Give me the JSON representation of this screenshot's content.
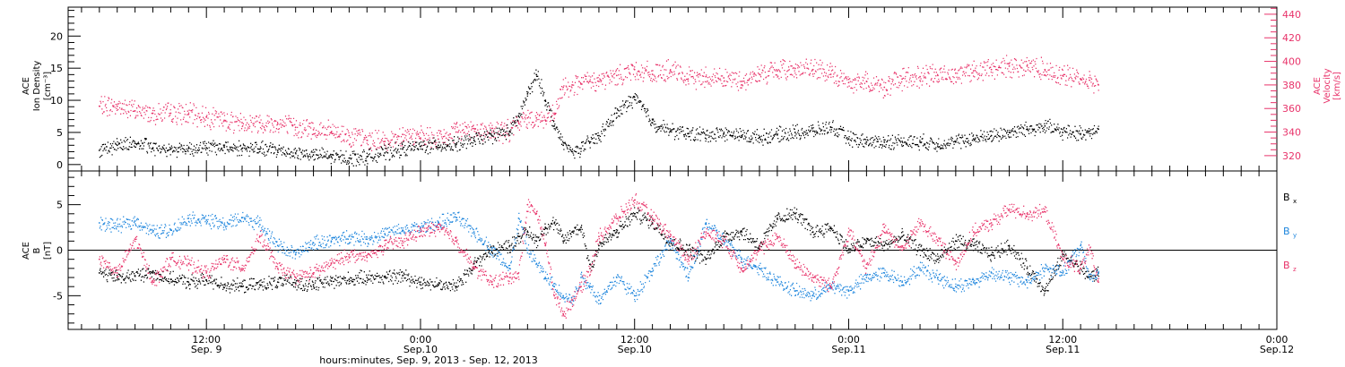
{
  "chart_data": [
    {
      "type": "scatter",
      "panel": "top",
      "ylabel_left": [
        "ACE",
        "Ion Density",
        "[cm⁻³]"
      ],
      "ylabel_right": [
        "ACE",
        "Velocity",
        "[km/s]"
      ],
      "ylim_left": [
        -1,
        24.5
      ],
      "ylim_right": [
        307,
        446
      ],
      "yticks_left": [
        "0",
        "5",
        "10",
        "15",
        "20"
      ],
      "yticks_right": [
        "320",
        "340",
        "360",
        "380",
        "400",
        "420",
        "440"
      ],
      "series": [
        {
          "axis": "left",
          "color": "#000000",
          "x": [
            0.0,
            2.0,
            4.0,
            6.0,
            8.0,
            10.0,
            12.0,
            14.0,
            16.0,
            18.0,
            20.0,
            22.0,
            24.0,
            26.0,
            28.0,
            30.0,
            32.0,
            34.0,
            36.0,
            38.0,
            40.0,
            42.0,
            44.0,
            46.0,
            47.0,
            48.0,
            49.0,
            50.0,
            51.0,
            52.0,
            53.0,
            54.0,
            55.0,
            56.0,
            58.0,
            60.0,
            62.0,
            64.0,
            66.0,
            68.0,
            70.0,
            72.0,
            74.0,
            76.0,
            78.0,
            80.0,
            82.0,
            84.0,
            86.0,
            88.0,
            90.0,
            92.0,
            94.0,
            96.0,
            98.0,
            100.0,
            102.0,
            104.0,
            106.0,
            108.0,
            110.0,
            111.0,
            112.0
          ],
          "y": [
            2.2,
            3.0,
            3.3,
            2.6,
            2.4,
            2.5,
            2.6,
            2.7,
            2.5,
            2.4,
            2.2,
            1.8,
            1.5,
            1.2,
            1.0,
            1.2,
            1.8,
            2.4,
            2.8,
            3.0,
            3.1,
            3.8,
            4.5,
            5.2,
            7.5,
            11.0,
            14.0,
            10.0,
            6.0,
            3.0,
            2.0,
            2.5,
            3.5,
            4.5,
            8.0,
            10.5,
            6.5,
            5.2,
            4.8,
            4.6,
            4.8,
            4.5,
            4.2,
            4.6,
            5.0,
            5.2,
            5.8,
            4.0,
            3.5,
            3.5,
            3.6,
            3.5,
            3.2,
            3.5,
            4.0,
            4.5,
            5.0,
            5.5,
            6.0,
            5.0,
            4.8,
            5.2,
            5.5
          ]
        },
        {
          "axis": "right",
          "color": "#e8336a",
          "x": [
            0.0,
            2.0,
            4.0,
            6.0,
            8.0,
            10.0,
            12.0,
            14.0,
            16.0,
            18.0,
            20.0,
            22.0,
            24.0,
            26.0,
            28.0,
            30.0,
            32.0,
            34.0,
            36.0,
            38.0,
            40.0,
            42.0,
            44.0,
            46.0,
            47.0,
            48.0,
            49.0,
            50.0,
            51.0,
            52.0,
            53.0,
            54.0,
            55.0,
            56.0,
            58.0,
            60.0,
            62.0,
            64.0,
            66.0,
            68.0,
            70.0,
            72.0,
            74.0,
            76.0,
            78.0,
            80.0,
            82.0,
            84.0,
            86.0,
            88.0,
            90.0,
            92.0,
            94.0,
            96.0,
            98.0,
            100.0,
            102.0,
            104.0,
            106.0,
            108.0,
            110.0,
            111.0,
            112.0
          ],
          "y": [
            362,
            362,
            358,
            356,
            356,
            355,
            353,
            350,
            348,
            348,
            347,
            344,
            342,
            340,
            337,
            333,
            332,
            338,
            335,
            334,
            340,
            343,
            340,
            341,
            348,
            352,
            352,
            350,
            355,
            378,
            380,
            381,
            383,
            383,
            388,
            393,
            389,
            392,
            385,
            387,
            386,
            383,
            389,
            392,
            394,
            393,
            389,
            382,
            383,
            378,
            385,
            387,
            388,
            390,
            392,
            393,
            396,
            396,
            393,
            388,
            385,
            384,
            380
          ]
        }
      ]
    },
    {
      "type": "scatter",
      "panel": "bottom",
      "ylabel_left": [
        "ACE",
        "B",
        "[nT]"
      ],
      "ylim": [
        -8.7,
        8.7
      ],
      "yticks_left": [
        "-5",
        "0",
        "5"
      ],
      "legend": "right",
      "series": [
        {
          "name": "Bx",
          "color": "#000000",
          "x": [
            0.0,
            2.0,
            4.0,
            6.0,
            8.0,
            10.0,
            12.0,
            14.0,
            16.0,
            18.0,
            20.0,
            22.0,
            24.0,
            26.0,
            28.0,
            30.0,
            32.0,
            34.0,
            36.0,
            38.0,
            40.0,
            42.0,
            44.0,
            46.0,
            47.0,
            48.0,
            49.0,
            50.0,
            51.0,
            52.0,
            53.0,
            54.0,
            55.0,
            56.0,
            58.0,
            60.0,
            62.0,
            64.0,
            66.0,
            68.0,
            70.0,
            72.0,
            74.0,
            76.0,
            78.0,
            80.0,
            82.0,
            84.0,
            86.0,
            88.0,
            90.0,
            92.0,
            94.0,
            96.0,
            98.0,
            100.0,
            102.0,
            104.0,
            106.0,
            108.0,
            110.0,
            111.0,
            112.0
          ],
          "y": [
            -2.5,
            -3.0,
            -2.8,
            -2.5,
            -3.2,
            -3.5,
            -3.3,
            -3.8,
            -4.0,
            -3.8,
            -3.5,
            -3.6,
            -3.8,
            -3.4,
            -3.2,
            -3.0,
            -3.0,
            -2.8,
            -3.5,
            -3.8,
            -4.0,
            -1.5,
            0.0,
            0.5,
            1.5,
            2.0,
            1.0,
            2.5,
            3.0,
            1.0,
            2.0,
            2.5,
            -2.0,
            0.5,
            2.0,
            4.0,
            3.0,
            1.0,
            0.0,
            -1.0,
            1.5,
            2.0,
            0.5,
            3.5,
            4.0,
            2.0,
            2.5,
            0.0,
            1.0,
            0.5,
            1.5,
            0.0,
            -1.0,
            1.0,
            0.5,
            -0.5,
            0.5,
            -2.0,
            -4.5,
            -0.5,
            -2.0,
            -3.0,
            -2.5
          ]
        },
        {
          "name": "By",
          "color": "#1f86dd",
          "x": [
            0.0,
            2.0,
            4.0,
            6.0,
            8.0,
            10.0,
            12.0,
            14.0,
            16.0,
            18.0,
            20.0,
            22.0,
            24.0,
            26.0,
            28.0,
            30.0,
            32.0,
            34.0,
            36.0,
            38.0,
            40.0,
            42.0,
            44.0,
            46.0,
            47.0,
            48.0,
            49.0,
            50.0,
            51.0,
            52.0,
            53.0,
            54.0,
            55.0,
            56.0,
            58.0,
            60.0,
            62.0,
            64.0,
            66.0,
            68.0,
            70.0,
            72.0,
            74.0,
            76.0,
            78.0,
            80.0,
            82.0,
            84.0,
            86.0,
            88.0,
            90.0,
            92.0,
            94.0,
            96.0,
            98.0,
            100.0,
            102.0,
            104.0,
            106.0,
            108.0,
            110.0,
            111.0,
            112.0
          ],
          "y": [
            3.0,
            2.6,
            3.2,
            2.0,
            2.2,
            3.5,
            3.3,
            2.8,
            3.6,
            2.8,
            0.5,
            -0.5,
            0.8,
            1.0,
            1.5,
            1.2,
            1.8,
            2.2,
            2.5,
            3.0,
            3.6,
            2.0,
            0.0,
            -2.0,
            3.5,
            0.0,
            -1.5,
            -3.0,
            -4.0,
            -5.0,
            -5.5,
            -3.0,
            -4.0,
            -5.5,
            -3.0,
            -5.0,
            -2.0,
            1.0,
            -3.0,
            3.0,
            1.0,
            -1.0,
            -2.0,
            -3.5,
            -4.5,
            -5.0,
            -4.0,
            -4.5,
            -3.0,
            -2.5,
            -3.5,
            -2.0,
            -3.0,
            -4.0,
            -3.5,
            -2.5,
            -3.0,
            -3.5,
            -2.0,
            -2.5,
            0.5,
            -3.0,
            -2.5
          ]
        },
        {
          "name": "Bz",
          "color": "#e8336a",
          "x": [
            0.0,
            2.0,
            4.0,
            6.0,
            8.0,
            10.0,
            12.0,
            14.0,
            16.0,
            18.0,
            20.0,
            22.0,
            24.0,
            26.0,
            28.0,
            30.0,
            32.0,
            34.0,
            36.0,
            38.0,
            40.0,
            42.0,
            44.0,
            46.0,
            47.0,
            48.0,
            49.0,
            50.0,
            51.0,
            52.0,
            53.0,
            54.0,
            55.0,
            56.0,
            58.0,
            60.0,
            62.0,
            64.0,
            66.0,
            68.0,
            70.0,
            72.0,
            74.0,
            76.0,
            78.0,
            80.0,
            82.0,
            84.0,
            86.0,
            88.0,
            90.0,
            92.0,
            94.0,
            96.0,
            98.0,
            100.0,
            102.0,
            104.0,
            106.0,
            108.0,
            110.0,
            111.0,
            112.0
          ],
          "y": [
            -1.0,
            -2.5,
            1.2,
            -3.5,
            -1.0,
            -1.5,
            -2.5,
            -1.0,
            -2.0,
            1.5,
            -2.0,
            -3.0,
            -2.5,
            -1.5,
            -0.5,
            -0.8,
            0.5,
            1.0,
            2.0,
            2.5,
            1.0,
            -2.0,
            -3.5,
            -3.0,
            -2.5,
            5.0,
            4.0,
            0.5,
            -5.0,
            -7.0,
            -5.5,
            -4.0,
            -2.0,
            1.5,
            3.5,
            5.5,
            3.5,
            1.5,
            -1.0,
            2.0,
            1.0,
            -2.0,
            0.0,
            1.5,
            -1.5,
            -3.0,
            -4.0,
            2.0,
            -2.0,
            2.5,
            0.0,
            3.0,
            1.0,
            -1.5,
            2.0,
            3.0,
            4.5,
            4.0,
            4.2,
            -1.0,
            -2.0,
            0.0,
            -3.5
          ]
        }
      ]
    }
  ],
  "xaxis": {
    "xlabel": "hours:minutes, Sep.  9, 2013 - Sep. 12, 2013",
    "xlim": [
      -3.5,
      132
    ],
    "ticks": [
      {
        "x": 12,
        "time": "12:00",
        "date": "Sep. 9"
      },
      {
        "x": 36,
        "time": "0:00",
        "date": "Sep.10"
      },
      {
        "x": 60,
        "time": "12:00",
        "date": "Sep.10"
      },
      {
        "x": 84,
        "time": "0:00",
        "date": "Sep.11"
      },
      {
        "x": 108,
        "time": "12:00",
        "date": "Sep.11"
      },
      {
        "x": 132,
        "time": "0:00",
        "date": "Sep.12"
      }
    ],
    "minor_tick_step_hours": 2
  }
}
